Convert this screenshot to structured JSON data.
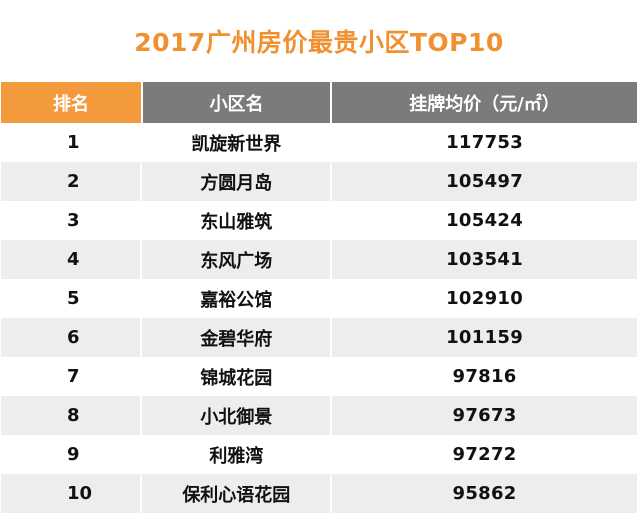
{
  "chart_data": {
    "type": "table",
    "title": "2017广州房价最贵小区TOP10",
    "columns": [
      "排名",
      "小区名",
      "挂牌均价（元/㎡）"
    ],
    "rows": [
      {
        "rank": "1",
        "name": "凯旋新世界",
        "price": "117753"
      },
      {
        "rank": "2",
        "name": "方圆月岛",
        "price": "105497"
      },
      {
        "rank": "3",
        "name": "东山雅筑",
        "price": "105424"
      },
      {
        "rank": "4",
        "name": "东风广场",
        "price": "103541"
      },
      {
        "rank": "5",
        "name": "嘉裕公馆",
        "price": "102910"
      },
      {
        "rank": "6",
        "name": "金碧华府",
        "price": "101159"
      },
      {
        "rank": "7",
        "name": "锦城花园",
        "price": "97816"
      },
      {
        "rank": "8",
        "name": "小北御景",
        "price": "97673"
      },
      {
        "rank": "9",
        "name": "利雅湾",
        "price": "97272"
      },
      {
        "rank": "10",
        "name": "保利心语花园",
        "price": "95862"
      }
    ]
  },
  "colors": {
    "title": "#f0902f",
    "rank_header_bg": "#f39a3c",
    "header_bg": "#7b7b7b",
    "alt_row_bg": "#ededed"
  }
}
